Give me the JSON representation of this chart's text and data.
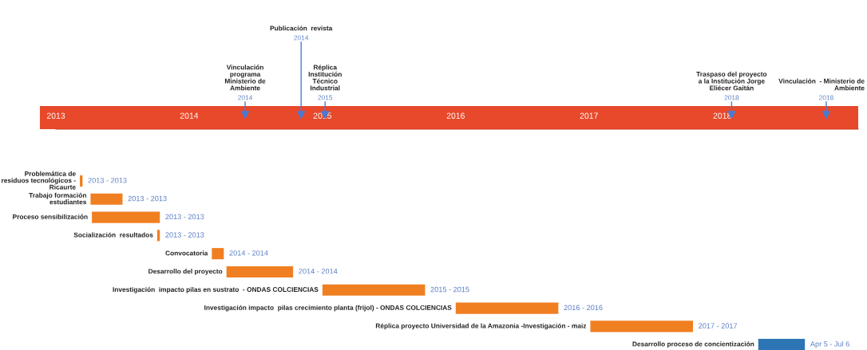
{
  "chart_data": {
    "type": "bar",
    "orientation": "horizontal",
    "categories": [
      "Problemática de\nresiduos tecnológicos -\nRicaurte",
      "Trabajo formación\nestudiantes",
      "Proceso sensibilización",
      "Socialización  resultados",
      "Convocatoria",
      "Desarrollo del proyecto",
      "Investigación  impacto pilas en sustrato  - ONDAS COLCIENCIAS",
      "Investigación impacto  pilas crecimiento planta (frijol) - ONDAS COLCIENCIAS",
      "Réplica proyecto Universidad de la Amazonia -Investigación - maiz",
      "Desarrollo proceso de concientización"
    ],
    "base": [
      2013.18,
      2013.26,
      2013.27,
      2013.76,
      2014.17,
      2014.28,
      2015.0,
      2016.0,
      2017.01,
      2018.27
    ],
    "values": [
      0.02,
      0.24,
      0.51,
      0.02,
      0.09,
      0.5,
      0.77,
      0.77,
      0.77,
      0.35
    ],
    "colors": [
      "#f07f22",
      "#f07f22",
      "#f07f22",
      "#f07f22",
      "#f07f22",
      "#f07f22",
      "#f07f22",
      "#f07f22",
      "#f07f22",
      "#2e75b6"
    ],
    "xlim": [
      2013,
      2019.02
    ],
    "xticks": [
      2013,
      2014,
      2015,
      2016,
      2017,
      2018
    ],
    "tick_labels": "x",
    "ref_lines": [
      {
        "axis": "x",
        "value": 2014.42,
        "label": "Vinculación\nprograma\nMinisterio de\nAmbiente\n2014"
      },
      {
        "axis": "x",
        "value": 2014.84,
        "label": "Publicación  revista\n2014"
      },
      {
        "axis": "x",
        "value": 2015.02,
        "label": "Réplica\nInstitución\nTécnico\nIndustrial\n2015"
      },
      {
        "axis": "x",
        "value": 2018.07,
        "label": "Traspaso del proyecto\na la Institución Jorge\nEliécer Gaitán\n2018"
      },
      {
        "axis": "x",
        "value": 2018.78,
        "label": "Vinculación  - Ministerio de\nAmbiente\n2018"
      }
    ],
    "annotations": [
      "2013 - 2013",
      "2013 - 2013",
      "2013 - 2013",
      "2013 - 2013",
      "2014 - 2014",
      "2014 - 2014",
      "2015 - 2015",
      "2016 - 2016",
      "2017 - 2017",
      "Apr 5 - Jul 6"
    ],
    "grid": false,
    "legend": false
  }
}
